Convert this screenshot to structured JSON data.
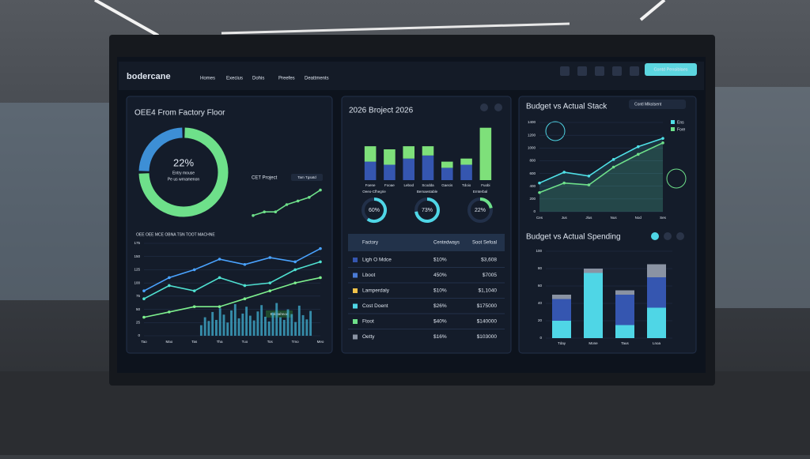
{
  "header": {
    "brand": "bodercane",
    "nav": [
      "Homes",
      "Execius",
      "Dohis",
      "Preefes",
      "Deattments"
    ],
    "button": "Contd Pensiblaes"
  },
  "panels": {
    "oee": {
      "title": "OEE4 From Factory Floor",
      "center_value": "22%",
      "center_lines": [
        "Entry mouse",
        "Pe us wrnamenon"
      ],
      "mini_title": "CET Project",
      "mini_button": "Tam Tgsatd",
      "chart_title": "OEE OEE MCE OBNA TSN TOOT MACHNE",
      "legend_tag": "Bulatahnod"
    },
    "project": {
      "title": "2026 Broject 2026"
    },
    "table": {
      "columns": [
        "Factory",
        "Centedways",
        "Soot Sefoal"
      ],
      "rows": [
        [
          "Ligh O Mdce",
          "$10%",
          "$3,608"
        ],
        [
          "Lboot",
          "450%",
          "$7005"
        ],
        [
          "Lamperdaly",
          "$10%",
          "$1,1040"
        ],
        [
          "Cost Doent",
          "$26%",
          "$175000"
        ],
        [
          "Ftoot",
          "$40%",
          "$140000"
        ],
        [
          "Oetty",
          "$16%",
          "$103000"
        ]
      ]
    },
    "budget": {
      "title": "Budget vs Actual Stack",
      "dropdown": "Contl Mlkstsent",
      "title2": "Budget vs Actual Spending"
    }
  },
  "chart_data": [
    {
      "type": "pie",
      "values": [
        75,
        25
      ],
      "colors": [
        "#6ee08a",
        "#3d8fd6"
      ]
    },
    {
      "type": "line",
      "categories": [
        null,
        null,
        null,
        null,
        null,
        null,
        null
      ],
      "ylim": [
        0,
        10
      ],
      "series": [
        {
          "color": "#6ee08a",
          "values": [
            2,
            3,
            3,
            5,
            6,
            7,
            9
          ]
        }
      ]
    },
    {
      "type": "line",
      "categories": [
        "Tao",
        "Mao",
        "Tas",
        "Tha",
        "Tuo",
        "Tos",
        "Tmo",
        "Meo"
      ],
      "ylim": [
        0,
        175
      ],
      "yticks": [
        0,
        25,
        50,
        75,
        100,
        125,
        150,
        175
      ],
      "grid": true,
      "series": [
        {
          "color": "#4aa3ff",
          "values": [
            85,
            110,
            125,
            145,
            135,
            148,
            140,
            165
          ]
        },
        {
          "color": "#4fe0d0",
          "values": [
            70,
            95,
            85,
            110,
            95,
            100,
            125,
            140
          ]
        },
        {
          "color": "#7ef08e",
          "values": [
            35,
            45,
            55,
            55,
            70,
            85,
            100,
            110
          ]
        }
      ]
    },
    {
      "type": "bar",
      "ylim": [
        0,
        175
      ],
      "color": "#3fa9c9",
      "values": [
        20,
        35,
        28,
        45,
        30,
        52,
        40,
        25,
        48,
        60,
        33,
        42,
        55,
        38,
        29,
        46,
        58,
        36,
        27,
        44,
        62,
        35,
        30,
        50,
        41,
        26,
        57,
        39,
        31,
        47
      ]
    },
    {
      "type": "bar",
      "stacked": true,
      "categories": [
        "Foene",
        "Fooae",
        "Lebod",
        "Scodda",
        "Gaecis",
        "Tdoio",
        "Fuobi"
      ],
      "ylim": [
        0,
        100
      ],
      "series": [
        {
          "color": "#3556b0",
          "values": [
            30,
            25,
            35,
            40,
            20,
            25,
            0
          ]
        },
        {
          "color": "#7ee07a",
          "values": [
            25,
            25,
            20,
            15,
            10,
            10,
            85
          ]
        }
      ]
    },
    {
      "type": "gauge",
      "categories": [
        "Oeeo-Cfhegrie",
        "Bemaestable",
        "Ernterbal"
      ],
      "ylim": [
        0,
        100
      ],
      "values": [
        60,
        73,
        22
      ],
      "value_labels": [
        "60%",
        "73%",
        "22%"
      ],
      "colors": [
        "#4fd6e6",
        "#4fd6e6",
        "#6ee08a"
      ]
    },
    {
      "type": "line",
      "area": true,
      "categories": [
        "Ces",
        "Jus",
        "Jlus",
        "Nus",
        "Nod",
        "Ses"
      ],
      "ylim": [
        0,
        1400
      ],
      "yticks": [
        0,
        200,
        400,
        600,
        800,
        1000,
        1200,
        1400
      ],
      "grid": true,
      "series": [
        {
          "name": "Ens",
          "color": "#4fe0e6",
          "values": [
            450,
            620,
            560,
            820,
            1020,
            1150
          ]
        },
        {
          "name": "Fore",
          "color": "#6ee08a",
          "values": [
            300,
            450,
            420,
            700,
            900,
            1080
          ]
        }
      ]
    },
    {
      "type": "bar",
      "stacked": true,
      "categories": [
        "Tday",
        "Mone",
        "Taus",
        "Lnoa"
      ],
      "ylim": [
        0,
        100
      ],
      "yticks": [
        0,
        20,
        40,
        60,
        80,
        100
      ],
      "grid": true,
      "series": [
        {
          "color": "#4fd6e6",
          "values": [
            20,
            75,
            15,
            35
          ]
        },
        {
          "color": "#3556b0",
          "values": [
            25,
            0,
            35,
            35
          ]
        },
        {
          "color": "#8a93a3",
          "values": [
            5,
            5,
            5,
            15
          ]
        }
      ]
    }
  ]
}
